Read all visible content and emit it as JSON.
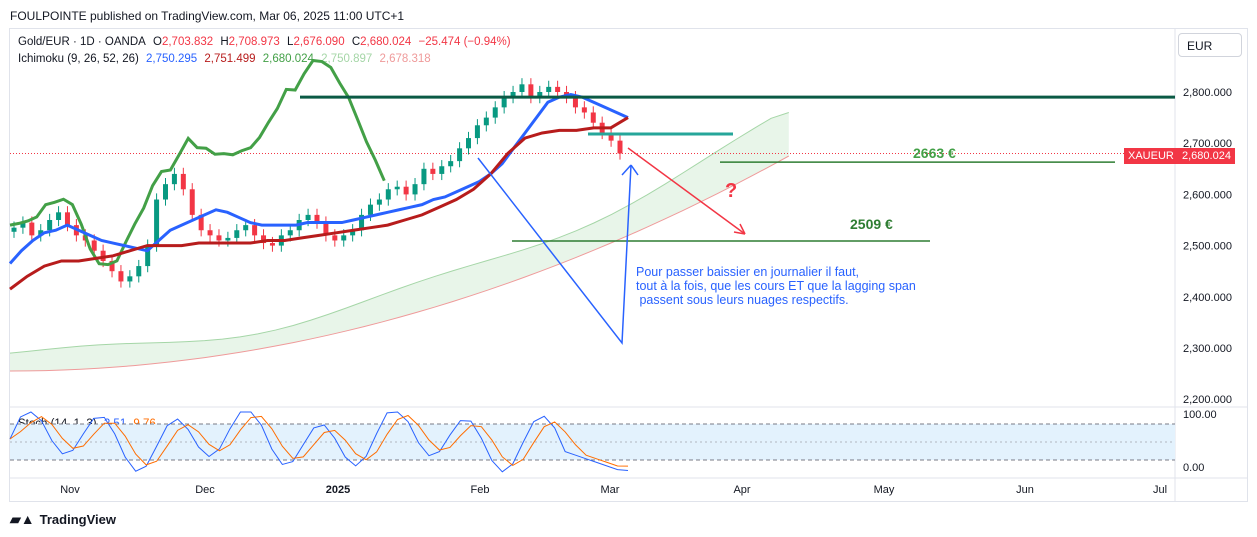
{
  "header": {
    "publisher": "FOULPOINTE published on TradingView.com, Mar 06, 2025 11:00 UTC+1"
  },
  "currency_button": "EUR",
  "legend": {
    "symbol": "Gold/EUR · 1D · OANDA",
    "o_label": "O",
    "o": "2,703.832",
    "h_label": "H",
    "h": "2,708.973",
    "l_label": "L",
    "l": "2,676.090",
    "c_label": "C",
    "c": "2,680.024",
    "change": "−25.474 (−0.94%)",
    "ichimoku_label": "Ichimoku (9, 26, 52, 26)",
    "ich_v1": "2,750.295",
    "ich_v2": "2,751.499",
    "ich_v3": "2,680.024",
    "ich_v4": "2,750.897",
    "ich_v5": "2,678.318",
    "stoch_label": "Stoch (14, 1, 3)",
    "stoch_k": "2.51",
    "stoch_d": "9.76"
  },
  "price_tag": {
    "symbol": "XAUEUR",
    "value": "2,680.024"
  },
  "annotations": {
    "level1": "2663 €",
    "level2": "2509 €",
    "question": "?",
    "note": "Pour passer baissier en journalier il faut,\ntout à la fois, que les cours ET que la lagging span\n passent sous leurs nuages respectifs."
  },
  "branding": "TradingView",
  "colors": {
    "up": "#089981",
    "down": "#f23645",
    "tenkan": "#2962ff",
    "kijun": "#b71c1c",
    "lagging": "#43a047",
    "cloud": "#e8f5e9",
    "resistance": "#0b5a45",
    "note": "#2962ff"
  },
  "chart_data": {
    "type": "candlestick",
    "title": "Gold/EUR · 1D · OANDA",
    "y_ticks": [
      "2,800.000",
      "2,700.000",
      "2,600.000",
      "2,500.000",
      "2,400.000",
      "2,300.000",
      "2,200.000"
    ],
    "y_tick_values": [
      2800,
      2700,
      2600,
      2500,
      2400,
      2300,
      2200
    ],
    "x_ticks": [
      "Nov",
      "Dec",
      "2025",
      "Feb",
      "Mar",
      "Apr",
      "May",
      "Jun",
      "Jul"
    ],
    "ylim": [
      2185,
      2880
    ],
    "series": [
      {
        "name": "Close (approx.)",
        "values": [
          2535,
          2545,
          2520,
          2530,
          2550,
          2565,
          2540,
          2520,
          2510,
          2490,
          2470,
          2450,
          2430,
          2440,
          2460,
          2500,
          2590,
          2620,
          2640,
          2610,
          2560,
          2530,
          2520,
          2510,
          2515,
          2530,
          2540,
          2520,
          2505,
          2500,
          2520,
          2530,
          2550,
          2560,
          2545,
          2520,
          2510,
          2520,
          2530,
          2560,
          2580,
          2590,
          2610,
          2615,
          2600,
          2620,
          2650,
          2640,
          2655,
          2665,
          2690,
          2710,
          2735,
          2750,
          2770,
          2790,
          2800,
          2815,
          2790,
          2800,
          2810,
          2800,
          2790,
          2770,
          2760,
          2740,
          2720,
          2705,
          2680
        ]
      },
      {
        "name": "Tenkan-sen",
        "values": [
          2465,
          2490,
          2510,
          2525,
          2530,
          2540,
          2530,
          2520,
          2510,
          2505,
          2500,
          2495,
          2490,
          2510,
          2530,
          2540,
          2550,
          2560,
          2570,
          2565,
          2555,
          2545,
          2540,
          2540,
          2540,
          2540,
          2545,
          2545,
          2545,
          2545,
          2550,
          2555,
          2560,
          2565,
          2570,
          2575,
          2580,
          2590,
          2595,
          2605,
          2615,
          2625,
          2640,
          2660,
          2690,
          2720,
          2750,
          2780,
          2790,
          2795,
          2790,
          2780,
          2770,
          2760,
          2750
        ]
      },
      {
        "name": "Kijun-sen",
        "values": [
          2415,
          2440,
          2460,
          2470,
          2470,
          2475,
          2480,
          2490,
          2500,
          2500,
          2500,
          2505,
          2505,
          2505,
          2505,
          2510,
          2510,
          2515,
          2520,
          2525,
          2530,
          2535,
          2540,
          2550,
          2560,
          2575,
          2590,
          2610,
          2640,
          2680,
          2710,
          2720,
          2725,
          2725,
          2730,
          2730,
          2750
        ]
      },
      {
        "name": "Resistance",
        "values": [
          2790
        ]
      },
      {
        "name": "Level 2663",
        "values": [
          2663
        ]
      },
      {
        "name": "Level 2509",
        "values": [
          2509
        ]
      }
    ],
    "stoch": {
      "ylim": [
        0,
        100
      ],
      "y_ticks": [
        "100.00",
        "0.00"
      ],
      "y_tick_values": [
        100,
        0
      ],
      "overbought": 80,
      "oversold": 20,
      "k": 2.51,
      "d": 9.76
    }
  }
}
